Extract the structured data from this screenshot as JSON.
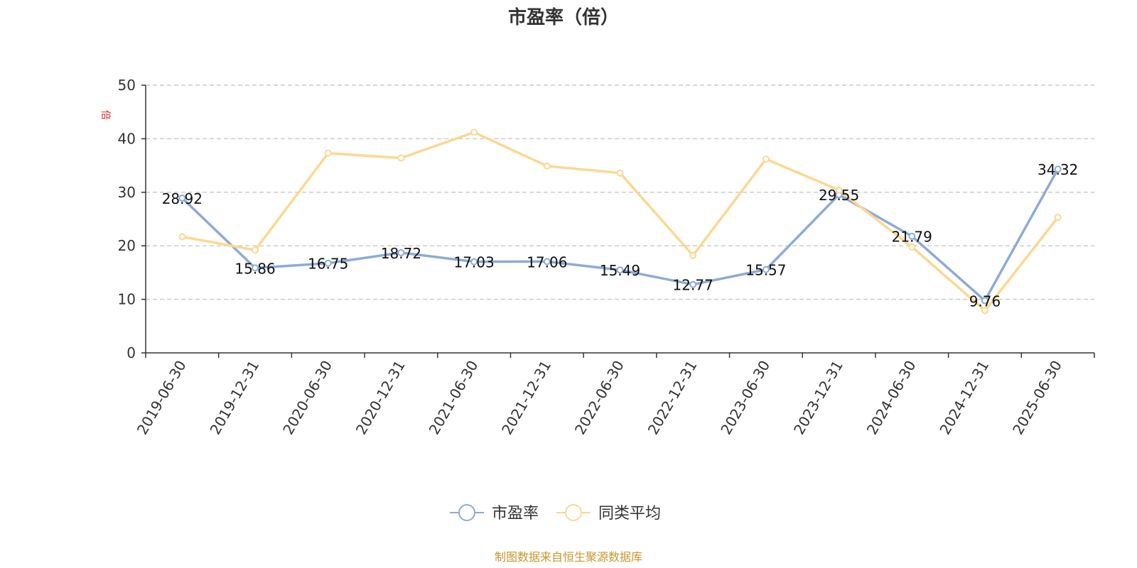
{
  "chart_data": {
    "type": "line",
    "title": "市盈率（倍）",
    "y_unit": "倍",
    "ylim": [
      0,
      50
    ],
    "yticks": [
      0,
      10,
      20,
      30,
      40,
      50
    ],
    "grid": true,
    "legend_position": "bottom-center",
    "categories": [
      "2019-06-30",
      "2019-12-31",
      "2020-06-30",
      "2020-12-31",
      "2021-06-30",
      "2021-12-31",
      "2022-06-30",
      "2022-12-31",
      "2023-06-30",
      "2023-12-31",
      "2024-06-30",
      "2024-12-31",
      "2025-06-30"
    ],
    "series": [
      {
        "name": "市盈率",
        "color": "#8eaad6",
        "values": [
          28.92,
          15.86,
          16.75,
          18.72,
          17.03,
          17.06,
          15.49,
          12.77,
          15.57,
          29.55,
          21.79,
          9.76,
          34.32
        ],
        "labels": [
          "28.92",
          "15.86",
          "16.75",
          "18.72",
          "17.03",
          "17.06",
          "15.49",
          "12.77",
          "15.57",
          "29.55",
          "21.79",
          "9.76",
          "34.32"
        ]
      },
      {
        "name": "同类平均",
        "color": "#fbd892",
        "values": [
          21.7,
          19.2,
          37.3,
          36.4,
          41.2,
          34.9,
          33.6,
          18.2,
          36.2,
          30.4,
          19.8,
          7.9,
          25.3
        ]
      }
    ]
  },
  "source_note": "制图数据来自恒生聚源数据库"
}
